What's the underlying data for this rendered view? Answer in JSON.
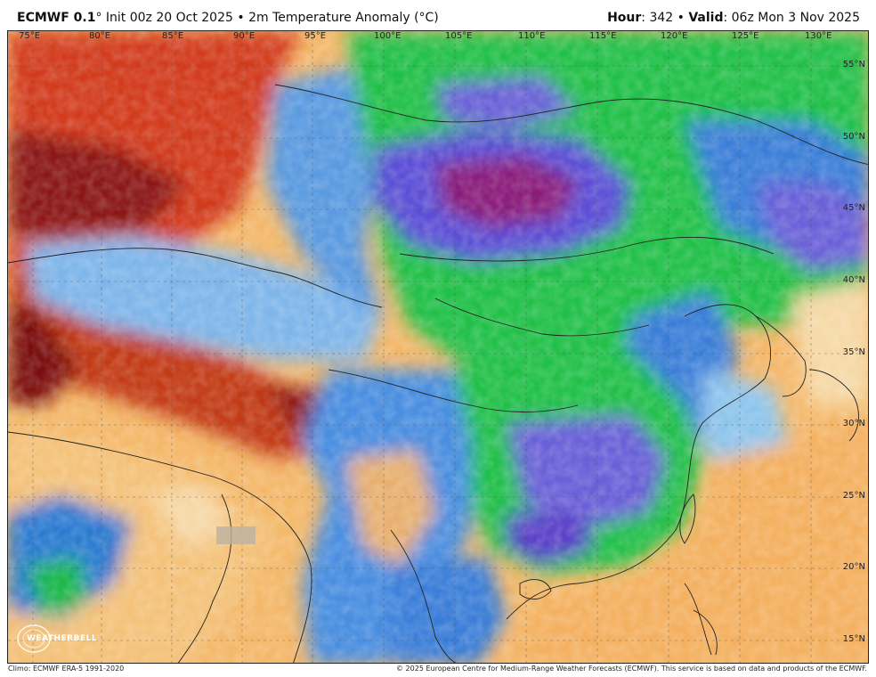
{
  "header": {
    "model": "ECMWF 0.1",
    "degree": "°",
    "init": "Init 00z 20 Oct 2025",
    "bullet": "•",
    "variable": "2m Temperature Anomaly (°C)",
    "hour_label": "Hour",
    "hour_value": ": 342",
    "valid_label": "Valid",
    "valid_value": ": 06z Mon 3 Nov 2025"
  },
  "map": {
    "lon_labels": [
      "75°E",
      "80°E",
      "85°E",
      "90°E",
      "95°E",
      "100°E",
      "105°E",
      "110°E",
      "115°E",
      "120°E",
      "125°E",
      "130°E"
    ],
    "lat_labels": [
      "55°N",
      "50°N",
      "45°N",
      "40°N",
      "35°N",
      "30°N",
      "25°N",
      "20°N",
      "15°N"
    ],
    "colors": {
      "extreme_warm": "#7a0a0a",
      "warm": "#d23a1a",
      "mild_warm": "#f4a55a",
      "slightly_warm": "#f6d9a8",
      "neutral": "#eef2f8",
      "slightly_cool": "#8ec5ec",
      "cool": "#3a7ed8",
      "cold": "#1fb84a",
      "colder": "#6a60d8",
      "coldest": "#7a1a6a"
    }
  },
  "footer": {
    "climo": "Climo: ECMWF ERA-5 1991-2020",
    "copyright": "© 2025 European Centre for Medium-Range Weather Forecasts (ECMWF). This service is based on data and products of the ECMWF."
  },
  "logo": {
    "text": "WEATHERBELL",
    "icon": "weatherbell-logo-icon"
  }
}
